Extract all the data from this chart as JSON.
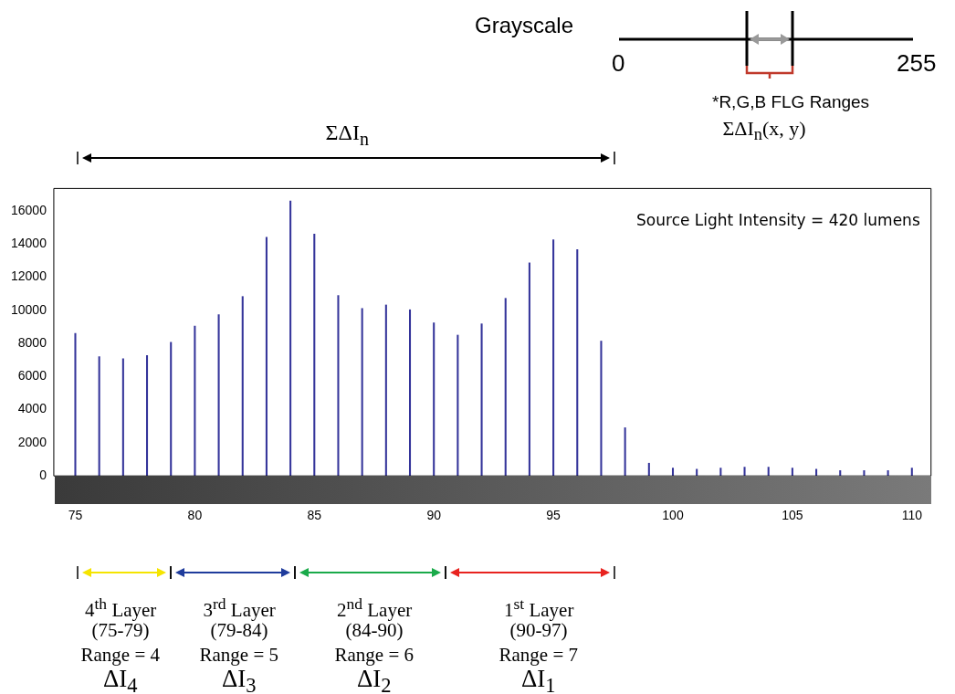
{
  "chart_data": {
    "type": "bar",
    "x": [
      75,
      76,
      77,
      78,
      79,
      80,
      81,
      82,
      83,
      84,
      85,
      86,
      87,
      88,
      89,
      90,
      91,
      92,
      93,
      94,
      95,
      96,
      97,
      98,
      99,
      100,
      101,
      102,
      103,
      104,
      105,
      106,
      107,
      108,
      109,
      110
    ],
    "values": [
      8600,
      7200,
      7070,
      7270,
      8070,
      9050,
      9740,
      10830,
      14400,
      16600,
      14600,
      10890,
      10110,
      10320,
      10030,
      9240,
      8500,
      9180,
      10720,
      12860,
      14260,
      13660,
      8140,
      2910,
      770,
      470,
      400,
      470,
      530,
      530,
      470,
      400,
      330,
      330,
      330,
      470
    ],
    "color": "#34349a",
    "xlim": [
      74.1,
      110.8
    ],
    "xticks": [
      75,
      80,
      85,
      90,
      95,
      100,
      105,
      110
    ],
    "ylim": [
      0,
      17350
    ],
    "yticks": [
      0,
      2000,
      4000,
      6000,
      8000,
      10000,
      12000,
      14000,
      16000
    ],
    "annotations": [
      "Source Light Intensity = 420 lumens",
      "Grayscale",
      "0",
      "255",
      "*R,G,B  FLG Ranges",
      "ΣΔI$_{n}$(x, y)",
      "ΣΔI$_{n}$",
      "4$^{th}$ Layer",
      "(75-79)",
      "Range = 4",
      "ΔI$_{4}$",
      "3$^{rd}$ Layer",
      "(79-84)",
      "Range = 5",
      "ΔI$_{3}$",
      "2$^{nd}$ Layer",
      "(84-90)",
      "Range = 6",
      "ΔI$_{2}$",
      "1$^{st}$ Layer",
      "(90-97)",
      "Range = 7",
      "ΔI$_{1}$"
    ]
  }
}
